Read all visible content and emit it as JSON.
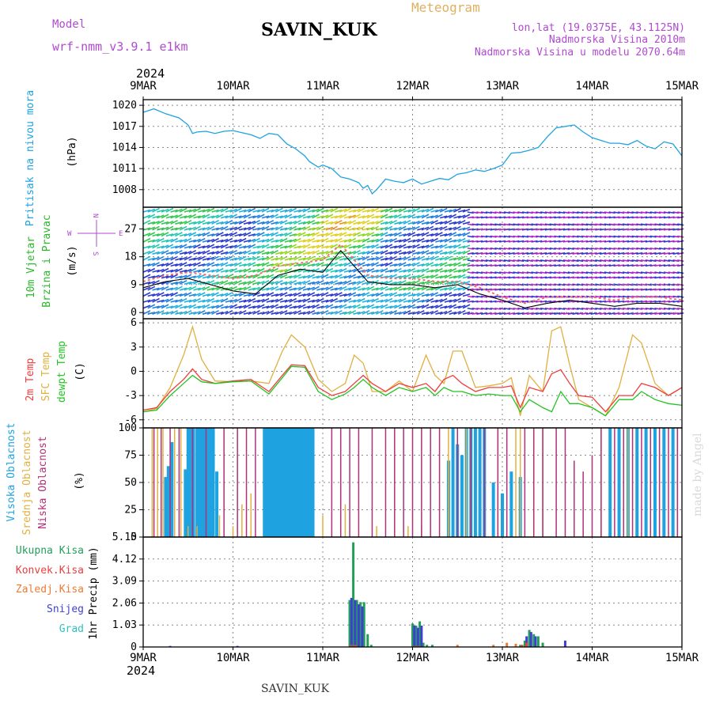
{
  "header": {
    "model_label": "Model",
    "model_name": "wrf-nmm_v3.9.1 e1km",
    "station": "SAVIN_KUK",
    "product": "Meteogram",
    "lonlat": "lon,lat (19.0375E, 43.1125N)",
    "altitude": "Nadmorska Visina 2010m",
    "model_altitude": "Nadmorska Visina u modelu 2070.64m",
    "year": "2024",
    "credit": "made by Angel",
    "footer_station": "SAVIN_KUK"
  },
  "colors": {
    "pressure": "#1fa3e0",
    "temp2m": "#f03c3c",
    "sfc_temp": "#e0b040",
    "dewpoint": "#22c422",
    "high_cloud": "#1fa3e0",
    "mid_cloud": "#e0b040",
    "low_cloud": "#b0307a",
    "total_precip": "#22a05a",
    "conv_precip": "#f03c3c",
    "frozen_precip": "#f07a30",
    "snow": "#4040d0",
    "hail": "#30c0c0",
    "wind_title": "#2ab82a",
    "wind_dir": "#b04ad0"
  },
  "chart_data": [
    {
      "type": "line",
      "id": "pressure",
      "x_ticks": [
        "9MAR",
        "10MAR",
        "11MAR",
        "12MAR",
        "13MAR",
        "14MAR",
        "15MAR"
      ],
      "ylabel": "Pritisak na nivou mora",
      "unit": "(hPa)",
      "ylim": [
        1005.5,
        1020.8
      ],
      "y_ticks": [
        1008,
        1011,
        1014,
        1017,
        1020
      ],
      "grid": true,
      "series": [
        {
          "x": [
            0,
            0.12,
            0.25,
            0.4,
            0.5,
            0.55,
            0.6,
            0.7,
            0.8,
            0.9,
            1,
            1.1,
            1.2,
            1.3,
            1.4,
            1.5,
            1.6,
            1.7,
            1.8,
            1.85,
            1.95,
            2,
            2.1,
            2.2,
            2.3,
            2.4,
            2.45,
            2.5,
            2.55,
            2.6,
            2.7,
            2.8,
            2.9,
            3,
            3.1,
            3.2,
            3.3,
            3.4,
            3.5,
            3.6,
            3.7,
            3.8,
            3.9,
            4,
            4.1,
            4.2,
            4.3,
            4.4,
            4.5,
            4.6,
            4.7,
            4.8,
            4.9,
            5,
            5.1,
            5.2,
            5.3,
            5.4,
            5.5,
            5.6,
            5.7,
            5.8,
            5.9,
            6
          ],
          "y": [
            1019,
            1019.5,
            1018.8,
            1018.2,
            1017.2,
            1016,
            1016.2,
            1016.3,
            1016,
            1016.3,
            1016.4,
            1016.1,
            1015.8,
            1015.3,
            1016,
            1015.8,
            1014.5,
            1013.8,
            1012.8,
            1012,
            1011.2,
            1011.5,
            1011,
            1009.8,
            1009.5,
            1009,
            1008.2,
            1008.6,
            1007.4,
            1008,
            1009.5,
            1009.2,
            1009,
            1009.5,
            1008.8,
            1009.2,
            1009.6,
            1009.4,
            1010.2,
            1010.4,
            1010.8,
            1010.6,
            1011,
            1011.5,
            1013.2,
            1013.3,
            1013.6,
            1014,
            1015.5,
            1016.8,
            1017,
            1017.2,
            1016.2,
            1015.4,
            1015,
            1014.6,
            1014.6,
            1014.4,
            1015,
            1014.2,
            1013.8,
            1014.8,
            1014.5,
            1012.8
          ]
        }
      ]
    },
    {
      "type": "line",
      "id": "wind",
      "x_ticks": [
        "9MAR",
        "10MAR",
        "11MAR",
        "12MAR",
        "13MAR",
        "14MAR",
        "15MAR"
      ],
      "ylabel": "10m Vjetar Brzina i Pravac",
      "unit": "(m/s)",
      "ylim": [
        -2,
        34
      ],
      "y_ticks": [
        0,
        9,
        18,
        27
      ],
      "compass": {
        "n": "N",
        "s": "S",
        "w": "W",
        "e": "E"
      },
      "grid": true,
      "series": [
        {
          "role": "speed",
          "x": [
            0,
            0.25,
            0.5,
            0.75,
            1,
            1.25,
            1.5,
            1.75,
            2,
            2.2,
            2.5,
            2.75,
            3,
            3.25,
            3.5,
            3.75,
            4,
            4.25,
            4.5,
            4.75,
            5,
            5.25,
            5.5,
            5.75,
            6
          ],
          "y": [
            8,
            10,
            11,
            9,
            7,
            6,
            12,
            14,
            13,
            20,
            10,
            9,
            9,
            8,
            9,
            6,
            4,
            1.5,
            3,
            4,
            3,
            2,
            3,
            3,
            2
          ]
        },
        {
          "role": "gust",
          "x": [
            0,
            0.25,
            0.5,
            0.75,
            1,
            1.25,
            1.5,
            1.75,
            2,
            2.2,
            2.5,
            2.75,
            3,
            3.25,
            3.5,
            3.75,
            4,
            4.25,
            4.5,
            4.75,
            5,
            5.25,
            5.5,
            5.75,
            6
          ],
          "y": [
            10,
            12,
            13,
            12,
            11,
            12,
            15,
            16,
            17,
            22,
            12,
            11,
            11,
            10,
            10,
            8,
            5,
            3,
            5,
            5,
            5,
            4,
            5,
            5,
            4
          ]
        }
      ]
    },
    {
      "type": "line",
      "id": "temperature",
      "x_ticks": [
        "9MAR",
        "10MAR",
        "11MAR",
        "12MAR",
        "13MAR",
        "14MAR",
        "15MAR"
      ],
      "ylabel": "2m Temp, SFC Temp, dewpt Temp",
      "unit": "(C)",
      "ylim": [
        -7,
        6.5
      ],
      "y_ticks": [
        -6,
        -3,
        0,
        3,
        6
      ],
      "grid": true,
      "x": [
        0,
        0.15,
        0.3,
        0.45,
        0.55,
        0.65,
        0.8,
        1,
        1.2,
        1.4,
        1.55,
        1.65,
        1.8,
        1.95,
        2.1,
        2.25,
        2.35,
        2.45,
        2.55,
        2.7,
        2.85,
        3,
        3.15,
        3.25,
        3.35,
        3.45,
        3.55,
        3.7,
        3.85,
        4,
        4.1,
        4.2,
        4.3,
        4.45,
        4.55,
        4.65,
        4.75,
        4.85,
        5,
        5.15,
        5.3,
        5.45,
        5.55,
        5.7,
        5.85,
        6
      ],
      "series": [
        {
          "name": "2m Temp",
          "y": [
            -4.8,
            -4.5,
            -2.5,
            -1,
            0.3,
            -1,
            -1.5,
            -1.2,
            -1,
            -2.5,
            -0.5,
            0.8,
            0.7,
            -2,
            -3,
            -2.5,
            -1.5,
            -0.5,
            -1.5,
            -2.5,
            -1.5,
            -2,
            -1.5,
            -2.5,
            -1,
            -0.5,
            -1.5,
            -2.5,
            -2,
            -2,
            -1.8,
            -4.5,
            -2,
            -2.5,
            -0.3,
            0.2,
            -1.5,
            -3,
            -3.2,
            -5,
            -3,
            -3,
            -1.5,
            -2,
            -3,
            -2
          ]
        },
        {
          "name": "SFC Temp",
          "y": [
            -5,
            -4.6,
            -2,
            2,
            5.5,
            1.5,
            -1.2,
            -1.3,
            -1.2,
            -1.5,
            2.5,
            4.5,
            3,
            -1,
            -2.5,
            -1.5,
            2,
            1,
            -2.5,
            -2.5,
            -1.2,
            -2.5,
            2,
            -0.5,
            -1.5,
            2.5,
            2.5,
            -2,
            -1.8,
            -1.5,
            -0.8,
            -5.5,
            -0.5,
            -2.5,
            5,
            5.5,
            0.8,
            -3.5,
            -4.5,
            -5.5,
            -2,
            4.5,
            3.5,
            -1.5,
            -3,
            -2
          ]
        },
        {
          "name": "dewpt Temp",
          "y": [
            -5,
            -4.8,
            -3,
            -1.5,
            -0.5,
            -1.3,
            -1.5,
            -1.3,
            -1.2,
            -2.8,
            -0.8,
            0.6,
            0.5,
            -2.5,
            -3.5,
            -2.8,
            -2,
            -1,
            -2,
            -3,
            -2,
            -2.5,
            -2,
            -3,
            -2,
            -2.5,
            -2.5,
            -3,
            -2.8,
            -3,
            -3,
            -5,
            -3.5,
            -4.5,
            -5,
            -2.5,
            -4,
            -4,
            -4.5,
            -5.5,
            -3.5,
            -3.5,
            -2.5,
            -3.5,
            -4,
            -4.2
          ]
        }
      ]
    },
    {
      "type": "bar",
      "id": "cloud",
      "x_ticks": [
        "9MAR",
        "10MAR",
        "11MAR",
        "12MAR",
        "13MAR",
        "14MAR",
        "15MAR"
      ],
      "ylabel": "Visoka Oblacnost, Srednja Oblacnost, Niska Oblacnost",
      "unit": "(%)",
      "ylim": [
        0,
        100
      ],
      "y_ticks": [
        0,
        25,
        50,
        75,
        100
      ],
      "grid": true,
      "series": [
        {
          "name": "Visoka Oblacnost",
          "x": [
            0.25,
            0.28,
            0.32,
            0.47,
            0.5,
            0.53,
            0.56,
            0.6,
            0.63,
            0.66,
            0.69,
            0.72,
            0.75,
            0.78,
            0.82,
            1.35,
            1.38,
            1.41,
            1.44,
            1.47,
            1.5,
            1.53,
            1.56,
            1.59,
            1.62,
            1.65,
            1.68,
            1.71,
            1.74,
            1.77,
            1.8,
            1.83,
            1.86,
            1.89,
            3.4,
            3.45,
            3.5,
            3.55,
            3.6,
            3.65,
            3.7,
            3.75,
            3.8,
            3.9,
            4.0,
            4.1,
            4.2,
            5.2,
            5.3,
            5.4,
            5.5,
            5.6,
            5.7,
            5.8,
            5.9
          ],
          "y": [
            55,
            65,
            87,
            62,
            100,
            100,
            100,
            100,
            100,
            100,
            100,
            100,
            100,
            100,
            60,
            100,
            100,
            100,
            100,
            100,
            100,
            100,
            100,
            100,
            100,
            100,
            100,
            100,
            100,
            100,
            100,
            100,
            100,
            100,
            70,
            100,
            85,
            75,
            100,
            100,
            100,
            100,
            100,
            50,
            40,
            60,
            55,
            100,
            100,
            100,
            100,
            100,
            100,
            100,
            100
          ]
        },
        {
          "name": "Srednja Oblacnost",
          "x": [
            0.1,
            0.16,
            0.22,
            0.35,
            0.42,
            0.5,
            0.6,
            0.85,
            1.0,
            1.1,
            1.2,
            2.0,
            2.25,
            2.6,
            2.95,
            3.1,
            3.4,
            3.6,
            3.95,
            4.15,
            4.2,
            4.35,
            4.45,
            5.1,
            5.4,
            5.95
          ],
          "y": [
            100,
            100,
            100,
            100,
            100,
            10,
            10,
            20,
            10,
            30,
            40,
            20,
            30,
            10,
            10,
            10,
            100,
            100,
            100,
            100,
            100,
            100,
            100,
            100,
            100,
            100
          ]
        },
        {
          "name": "Niska Oblacnost",
          "x": [
            0.12,
            0.2,
            0.3,
            0.4,
            0.55,
            0.7,
            0.9,
            1.05,
            1.15,
            1.25,
            2.1,
            2.2,
            2.3,
            2.4,
            2.55,
            2.7,
            2.8,
            2.9,
            3.0,
            3.1,
            3.2,
            3.3,
            3.5,
            3.65,
            3.8,
            3.95,
            4.05,
            4.25,
            4.35,
            4.45,
            4.6,
            4.7,
            4.8,
            4.9,
            5.0,
            5.1,
            5.25,
            5.35,
            5.45,
            5.55,
            5.65,
            5.75,
            5.85,
            5.95
          ],
          "y": [
            100,
            100,
            100,
            100,
            100,
            100,
            100,
            100,
            100,
            100,
            100,
            100,
            100,
            100,
            100,
            100,
            100,
            100,
            100,
            100,
            100,
            100,
            100,
            100,
            100,
            100,
            100,
            100,
            100,
            100,
            100,
            100,
            70,
            60,
            75,
            100,
            100,
            100,
            100,
            100,
            100,
            100,
            100,
            100
          ]
        }
      ]
    },
    {
      "type": "bar",
      "id": "precip",
      "x_ticks": [
        "9MAR",
        "10MAR",
        "11MAR",
        "12MAR",
        "13MAR",
        "14MAR",
        "15MAR"
      ],
      "ylabel": "1hr Precip",
      "unit": "(mm)",
      "ylim": [
        0,
        5.15
      ],
      "y_ticks": [
        0,
        1.03,
        2.06,
        3.09,
        4.12,
        5.15
      ],
      "grid": true,
      "series": [
        {
          "name": "Ukupna Kisa",
          "x": [
            2.3,
            2.34,
            2.38,
            2.42,
            2.46,
            2.5,
            2.54,
            3.0,
            3.04,
            3.08,
            3.12,
            3.16,
            3.22,
            4.2,
            4.25,
            4.3,
            4.35,
            4.4,
            4.45
          ],
          "y": [
            2.2,
            4.9,
            2.2,
            2.1,
            2.1,
            0.6,
            0.1,
            1.1,
            1.0,
            1.2,
            0.2,
            0.1,
            0.1,
            0.1,
            0.3,
            0.8,
            0.6,
            0.5,
            0.2
          ]
        },
        {
          "name": "Konvek.Kisa",
          "x": [
            2.32,
            2.36,
            3.02,
            3.06,
            4.22,
            4.27
          ],
          "y": [
            0.1,
            0.1,
            0.05,
            0.05,
            0.1,
            0.2
          ]
        },
        {
          "name": "Zaledj.Kisa",
          "x": [
            3.5,
            3.9,
            4.05,
            4.15
          ],
          "y": [
            0.1,
            0.1,
            0.2,
            0.15
          ]
        },
        {
          "name": "Snijeg",
          "x": [
            0.3,
            1.05,
            2.32,
            2.36,
            2.4,
            2.44,
            3.02,
            3.06,
            3.1,
            4.27,
            4.32,
            4.37,
            4.7
          ],
          "y": [
            0.05,
            0.05,
            2.3,
            2.2,
            2.0,
            1.9,
            1.0,
            0.9,
            1.0,
            0.5,
            0.7,
            0.5,
            0.3
          ]
        },
        {
          "name": "Grad",
          "x": [],
          "y": []
        }
      ]
    }
  ]
}
